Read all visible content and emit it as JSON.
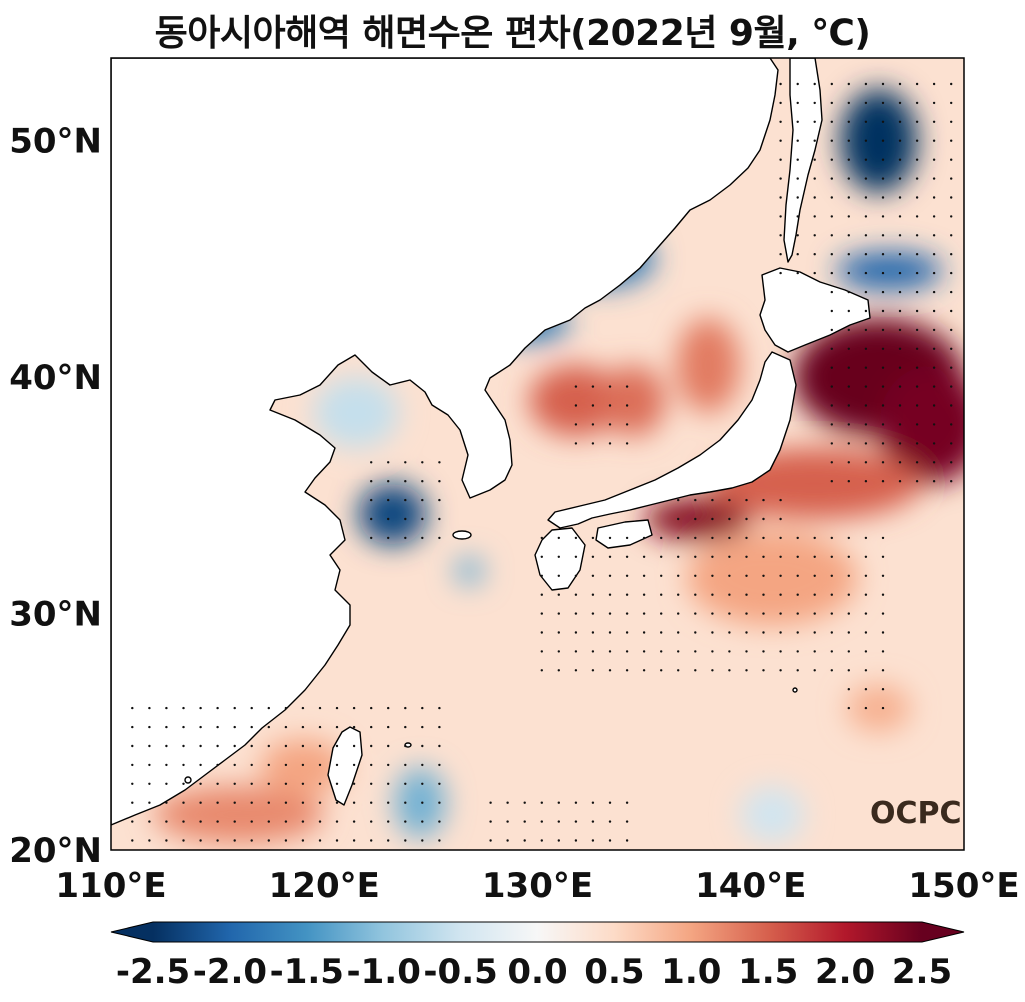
{
  "title": "동아시아해역 해면수온 편차(2022년 9월, ℃)",
  "logo_text": "OCPC",
  "map": {
    "lon_range": [
      110,
      150
    ],
    "lat_range": [
      20,
      53.5
    ],
    "x_ticks": [
      {
        "value": 110,
        "label": "110°E"
      },
      {
        "value": 120,
        "label": "120°E"
      },
      {
        "value": 130,
        "label": "130°E"
      },
      {
        "value": 140,
        "label": "140°E"
      },
      {
        "value": 150,
        "label": "150°E"
      }
    ],
    "y_ticks": [
      {
        "value": 20,
        "label": "20°N"
      },
      {
        "value": 30,
        "label": "30°N"
      },
      {
        "value": 40,
        "label": "40°N"
      },
      {
        "value": 50,
        "label": "50°N"
      }
    ],
    "colormap": "RdBu_r",
    "background_anomaly": 0.4,
    "anomaly_blobs": [
      {
        "lon": 146,
        "lat": 40,
        "rlon": 4,
        "rlat": 2.5,
        "value": 2.6
      },
      {
        "lon": 148.5,
        "lat": 38,
        "rlon": 2.5,
        "rlat": 2.5,
        "value": 2.4
      },
      {
        "lon": 137.5,
        "lat": 34,
        "rlon": 2.5,
        "rlat": 0.9,
        "value": 2.3
      },
      {
        "lon": 143,
        "lat": 35.5,
        "rlon": 5,
        "rlat": 1.5,
        "value": 1.5
      },
      {
        "lon": 141,
        "lat": 31.5,
        "rlon": 4,
        "rlat": 2,
        "value": 1.0
      },
      {
        "lon": 146,
        "lat": 50,
        "rlon": 1.8,
        "rlat": 2.2,
        "value": -2.6
      },
      {
        "lon": 146.5,
        "lat": 44.5,
        "rlon": 2.5,
        "rlat": 0.8,
        "value": -2.0
      },
      {
        "lon": 133,
        "lat": 45,
        "rlon": 2.5,
        "rlat": 1.2,
        "value": -1.8
      },
      {
        "lon": 129.5,
        "lat": 42.3,
        "rlon": 2,
        "rlat": 0.8,
        "value": -1.8
      },
      {
        "lon": 123.2,
        "lat": 34.2,
        "rlon": 1.6,
        "rlat": 1.3,
        "value": -2.3
      },
      {
        "lon": 126.8,
        "lat": 31.8,
        "rlon": 0.7,
        "rlat": 0.6,
        "value": -1.2
      },
      {
        "lon": 121.5,
        "lat": 38.5,
        "rlon": 2,
        "rlat": 1.5,
        "value": -0.6
      },
      {
        "lon": 124.5,
        "lat": 22,
        "rlon": 1.2,
        "rlat": 1.5,
        "value": -1.2
      },
      {
        "lon": 131.8,
        "lat": 39,
        "rlon": 2.2,
        "rlat": 1.5,
        "value": 1.5
      },
      {
        "lon": 134.5,
        "lat": 39,
        "rlon": 1.5,
        "rlat": 1.5,
        "value": 1.4
      },
      {
        "lon": 138,
        "lat": 40.5,
        "rlon": 1.5,
        "rlat": 2,
        "value": 1.3
      },
      {
        "lon": 116,
        "lat": 21.5,
        "rlon": 4,
        "rlat": 1.2,
        "value": 1.2
      },
      {
        "lon": 119,
        "lat": 23.5,
        "rlon": 2,
        "rlat": 1.2,
        "value": 1.0
      },
      {
        "lon": 146,
        "lat": 26,
        "rlon": 1.5,
        "rlat": 1,
        "value": 0.9
      },
      {
        "lon": 141,
        "lat": 21.5,
        "rlon": 1.5,
        "rlat": 1.2,
        "value": -0.5
      }
    ]
  },
  "colorbar": {
    "ticks": [
      "-2.5",
      "-2.0",
      "-1.5",
      "-1.0",
      "-0.5",
      "0.0",
      "0.5",
      "1.0",
      "1.5",
      "2.0",
      "2.5"
    ]
  }
}
